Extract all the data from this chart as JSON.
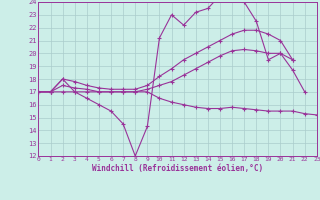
{
  "xlabel": "Windchill (Refroidissement éolien,°C)",
  "xlim": [
    0,
    23
  ],
  "ylim": [
    12,
    24
  ],
  "xticks": [
    0,
    1,
    2,
    3,
    4,
    5,
    6,
    7,
    8,
    9,
    10,
    11,
    12,
    13,
    14,
    15,
    16,
    17,
    18,
    19,
    20,
    21,
    22,
    23
  ],
  "yticks": [
    12,
    13,
    14,
    15,
    16,
    17,
    18,
    19,
    20,
    21,
    22,
    23,
    24
  ],
  "bg_color": "#cceee8",
  "line_color": "#993399",
  "grid_color": "#aacccc",
  "lines": [
    {
      "x": [
        0,
        1,
        2,
        3,
        4,
        5,
        6,
        7,
        8,
        9,
        10,
        11,
        12,
        13,
        14,
        15,
        16,
        17,
        18,
        19,
        20,
        21,
        22
      ],
      "y": [
        17.0,
        17.0,
        18.0,
        17.0,
        16.5,
        16.0,
        15.5,
        14.5,
        12.0,
        14.3,
        21.2,
        23.0,
        22.2,
        23.2,
        23.5,
        24.5,
        24.8,
        24.0,
        22.5,
        19.5,
        20.0,
        18.7,
        17.0
      ]
    },
    {
      "x": [
        0,
        1,
        2,
        3,
        4,
        5,
        6,
        7,
        8,
        9,
        10,
        11,
        12,
        13,
        14,
        15,
        16,
        17,
        18,
        19,
        20,
        21
      ],
      "y": [
        17.0,
        17.0,
        18.0,
        17.8,
        17.5,
        17.3,
        17.2,
        17.2,
        17.2,
        17.5,
        18.2,
        18.8,
        19.5,
        20.0,
        20.5,
        21.0,
        21.5,
        21.8,
        21.8,
        21.5,
        21.0,
        19.5
      ]
    },
    {
      "x": [
        0,
        1,
        2,
        3,
        4,
        5,
        6,
        7,
        8,
        9,
        10,
        11,
        12,
        13,
        14,
        15,
        16,
        17,
        18,
        19,
        20,
        21
      ],
      "y": [
        17.0,
        17.0,
        17.5,
        17.3,
        17.2,
        17.0,
        17.0,
        17.0,
        17.0,
        17.2,
        17.5,
        17.8,
        18.3,
        18.8,
        19.3,
        19.8,
        20.2,
        20.3,
        20.2,
        20.0,
        20.0,
        19.5
      ]
    },
    {
      "x": [
        0,
        1,
        2,
        3,
        4,
        5,
        6,
        7,
        8,
        9,
        10,
        11,
        12,
        13,
        14,
        15,
        16,
        17,
        18,
        19,
        20,
        21,
        22,
        23
      ],
      "y": [
        17.0,
        17.0,
        17.0,
        17.0,
        17.0,
        17.0,
        17.0,
        17.0,
        17.0,
        17.0,
        16.5,
        16.2,
        16.0,
        15.8,
        15.7,
        15.7,
        15.8,
        15.7,
        15.6,
        15.5,
        15.5,
        15.5,
        15.3,
        15.2
      ]
    }
  ]
}
